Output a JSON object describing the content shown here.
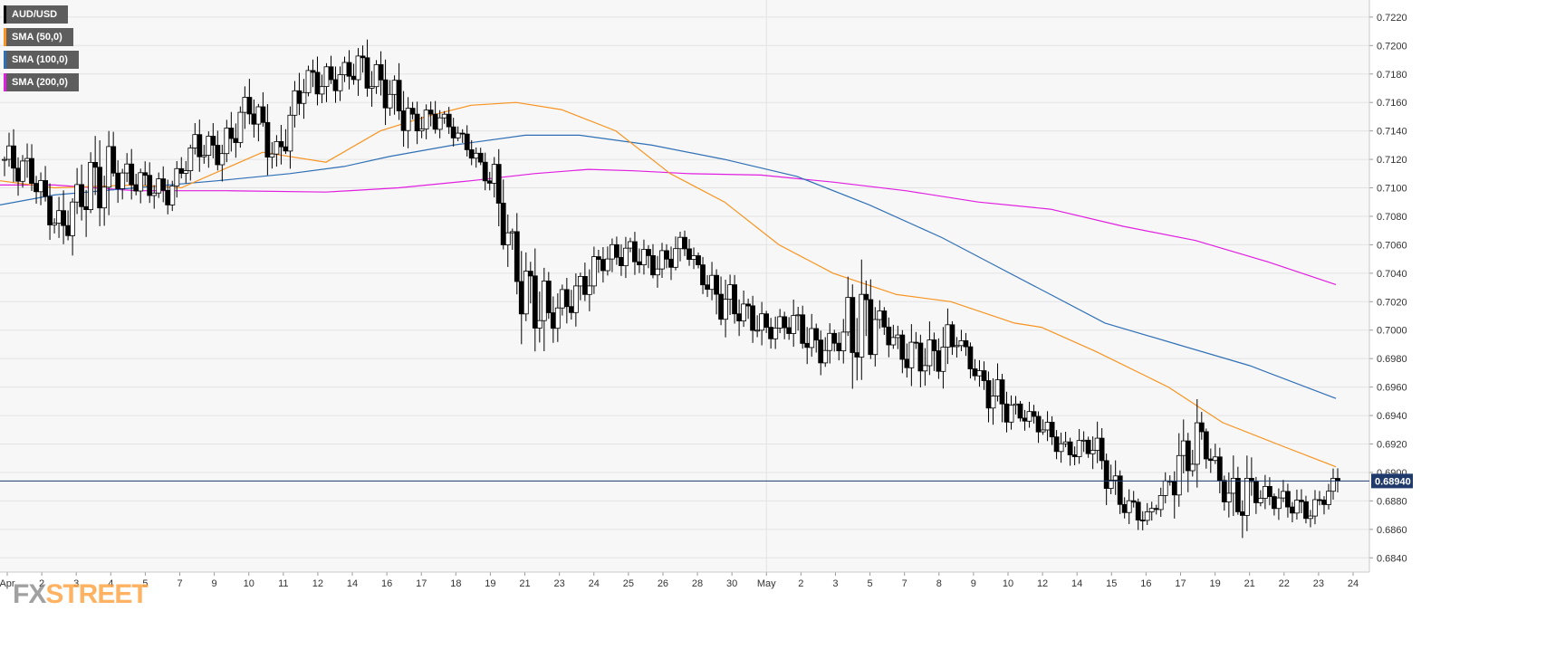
{
  "chart_data": {
    "type": "candlestick",
    "symbol": "AUD/USD",
    "last_price": "0.68940",
    "price_range": [
      0.683,
      0.7232
    ],
    "y_ticks": [
      "0.7220",
      "0.7200",
      "0.7180",
      "0.7160",
      "0.7140",
      "0.7120",
      "0.7100",
      "0.7080",
      "0.7060",
      "0.7040",
      "0.7020",
      "0.7000",
      "0.6980",
      "0.6960",
      "0.6940",
      "0.6920",
      "0.6900",
      "0.6880",
      "0.6860",
      "0.6840"
    ],
    "x_ticks": [
      "Apr",
      "2",
      "3",
      "4",
      "5",
      "7",
      "9",
      "10",
      "11",
      "12",
      "14",
      "16",
      "17",
      "18",
      "19",
      "21",
      "23",
      "24",
      "25",
      "26",
      "28",
      "30",
      "May",
      "2",
      "3",
      "5",
      "7",
      "8",
      "9",
      "10",
      "12",
      "14",
      "15",
      "16",
      "17",
      "19",
      "21",
      "22",
      "23",
      "24"
    ],
    "legend": [
      {
        "label": "AUD/USD",
        "color": "#000000"
      },
      {
        "label": "SMA (50,0)",
        "color": "#f7931e"
      },
      {
        "label": "SMA (100,0)",
        "color": "#2f6fb5"
      },
      {
        "label": "SMA (200,0)",
        "color": "#e01ee0"
      }
    ],
    "anchors": [
      [
        0.712,
        0.714,
        0.71
      ],
      [
        0.711,
        0.7125,
        0.709
      ],
      [
        0.707,
        0.71,
        0.705
      ],
      [
        0.71,
        0.7125,
        0.705
      ],
      [
        0.711,
        0.713,
        0.7095
      ],
      [
        0.7105,
        0.7125,
        0.7095
      ],
      [
        0.7095,
        0.711,
        0.7085
      ],
      [
        0.713,
        0.7145,
        0.711
      ],
      [
        0.7125,
        0.714,
        0.71
      ],
      [
        0.716,
        0.7175,
        0.713
      ],
      [
        0.712,
        0.7155,
        0.711
      ],
      [
        0.7175,
        0.7192,
        0.7155
      ],
      [
        0.7175,
        0.719,
        0.716
      ],
      [
        0.7185,
        0.7205,
        0.716
      ],
      [
        0.717,
        0.72,
        0.715
      ],
      [
        0.7145,
        0.7165,
        0.7135
      ],
      [
        0.715,
        0.7158,
        0.714
      ],
      [
        0.713,
        0.714,
        0.712
      ],
      [
        0.71,
        0.714,
        0.708
      ],
      [
        0.703,
        0.71,
        0.702
      ],
      [
        0.701,
        0.703,
        0.699
      ],
      [
        0.7025,
        0.7045,
        0.7005
      ],
      [
        0.705,
        0.706,
        0.703
      ],
      [
        0.7055,
        0.707,
        0.704
      ],
      [
        0.7045,
        0.7065,
        0.7035
      ],
      [
        0.706,
        0.7065,
        0.7045
      ],
      [
        0.7025,
        0.7055,
        0.7005
      ],
      [
        0.7015,
        0.7035,
        0.7
      ],
      [
        0.7,
        0.701,
        0.6985
      ],
      [
        0.7005,
        0.703,
        0.699
      ],
      [
        0.6985,
        0.7,
        0.697
      ],
      [
        0.6998,
        0.7048,
        0.6948
      ],
      [
        0.701,
        0.7028,
        0.7
      ],
      [
        0.6985,
        0.701,
        0.6965
      ],
      [
        0.698,
        0.702,
        0.697
      ],
      [
        0.6995,
        0.7008,
        0.6985
      ],
      [
        0.696,
        0.6995,
        0.695
      ],
      [
        0.6945,
        0.696,
        0.694
      ],
      [
        0.6935,
        0.695,
        0.6925
      ],
      [
        0.6915,
        0.693,
        0.6905
      ],
      [
        0.692,
        0.6935,
        0.6895
      ],
      [
        0.688,
        0.6895,
        0.687
      ],
      [
        0.6868,
        0.688,
        0.6863
      ],
      [
        0.69,
        0.693,
        0.687
      ],
      [
        0.6925,
        0.6935,
        0.6905
      ],
      [
        0.688,
        0.693,
        0.687
      ],
      [
        0.6885,
        0.6895,
        0.687
      ],
      [
        0.688,
        0.6895,
        0.687
      ],
      [
        0.6872,
        0.6885,
        0.6865
      ],
      [
        0.6894,
        0.6898,
        0.6868
      ]
    ],
    "sma_50": [
      [
        0,
        0.7105
      ],
      [
        60,
        0.71
      ],
      [
        150,
        0.7102
      ],
      [
        200,
        0.71
      ],
      [
        290,
        0.7125
      ],
      [
        360,
        0.7118
      ],
      [
        420,
        0.714
      ],
      [
        470,
        0.715
      ],
      [
        520,
        0.7158
      ],
      [
        570,
        0.716
      ],
      [
        620,
        0.7155
      ],
      [
        680,
        0.714
      ],
      [
        740,
        0.711
      ],
      [
        800,
        0.709
      ],
      [
        860,
        0.706
      ],
      [
        920,
        0.704
      ],
      [
        990,
        0.7025
      ],
      [
        1050,
        0.702
      ],
      [
        1120,
        0.7005
      ],
      [
        1150,
        0.7002
      ],
      [
        1210,
        0.6985
      ],
      [
        1290,
        0.696
      ],
      [
        1350,
        0.6935
      ],
      [
        1410,
        0.692
      ],
      [
        1475,
        0.6904
      ]
    ],
    "sma_100": [
      [
        0,
        0.7088
      ],
      [
        60,
        0.7095
      ],
      [
        150,
        0.71
      ],
      [
        240,
        0.7105
      ],
      [
        320,
        0.711
      ],
      [
        380,
        0.7115
      ],
      [
        430,
        0.7122
      ],
      [
        500,
        0.713
      ],
      [
        580,
        0.7137
      ],
      [
        640,
        0.7137
      ],
      [
        720,
        0.713
      ],
      [
        800,
        0.712
      ],
      [
        880,
        0.7108
      ],
      [
        960,
        0.7088
      ],
      [
        1040,
        0.7065
      ],
      [
        1100,
        0.7045
      ],
      [
        1160,
        0.7025
      ],
      [
        1220,
        0.7005
      ],
      [
        1300,
        0.699
      ],
      [
        1380,
        0.6975
      ],
      [
        1475,
        0.6952
      ]
    ],
    "sma_200": [
      [
        0,
        0.7102
      ],
      [
        60,
        0.7102
      ],
      [
        150,
        0.7098
      ],
      [
        250,
        0.7098
      ],
      [
        360,
        0.7097
      ],
      [
        440,
        0.71
      ],
      [
        520,
        0.7105
      ],
      [
        590,
        0.711
      ],
      [
        650,
        0.7113
      ],
      [
        700,
        0.7112
      ],
      [
        760,
        0.711
      ],
      [
        840,
        0.7109
      ],
      [
        920,
        0.7104
      ],
      [
        1000,
        0.7098
      ],
      [
        1080,
        0.709
      ],
      [
        1160,
        0.7085
      ],
      [
        1240,
        0.7073
      ],
      [
        1320,
        0.7063
      ],
      [
        1400,
        0.7048
      ],
      [
        1475,
        0.7032
      ]
    ]
  }
}
